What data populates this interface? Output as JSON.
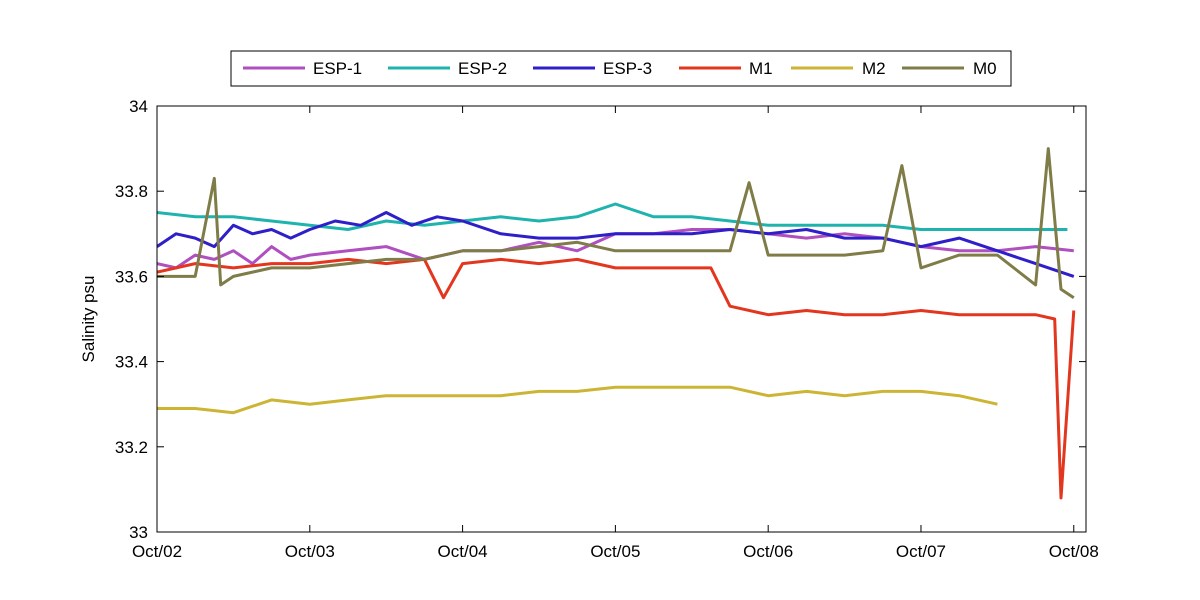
{
  "chart_data": {
    "type": "line",
    "title": "",
    "xlabel": "",
    "ylabel": "Salinity psu",
    "xlim": [
      "Oct/02",
      "Oct/08"
    ],
    "ylim": [
      33,
      34
    ],
    "x_ticks": [
      "Oct/02",
      "Oct/03",
      "Oct/04",
      "Oct/05",
      "Oct/06",
      "Oct/07",
      "Oct/08"
    ],
    "y_ticks": [
      "33",
      "33.2",
      "33.4",
      "33.6",
      "33.8",
      "34"
    ],
    "grid": false,
    "legend_position": "top-center",
    "series": [
      {
        "name": "ESP-1",
        "color": "#B04FBF",
        "x": [
          "Oct/02 00:00",
          "Oct/02 03:00",
          "Oct/02 06:00",
          "Oct/02 09:00",
          "Oct/02 12:00",
          "Oct/02 15:00",
          "Oct/02 18:00",
          "Oct/02 21:00",
          "Oct/03 00:00",
          "Oct/03 06:00",
          "Oct/03 12:00",
          "Oct/03 18:00",
          "Oct/04 00:00",
          "Oct/04 06:00",
          "Oct/04 12:00",
          "Oct/04 18:00",
          "Oct/05 00:00",
          "Oct/05 06:00",
          "Oct/05 12:00",
          "Oct/05 18:00",
          "Oct/06 00:00",
          "Oct/06 06:00",
          "Oct/06 12:00",
          "Oct/06 18:00",
          "Oct/07 00:00",
          "Oct/07 06:00",
          "Oct/07 12:00",
          "Oct/07 18:00",
          "Oct/08 00:00"
        ],
        "y": [
          33.63,
          33.62,
          33.65,
          33.64,
          33.66,
          33.63,
          33.67,
          33.64,
          33.65,
          33.66,
          33.67,
          33.64,
          33.66,
          33.66,
          33.68,
          33.66,
          33.7,
          33.7,
          33.71,
          33.71,
          33.7,
          33.69,
          33.7,
          33.69,
          33.67,
          33.66,
          33.66,
          33.67,
          33.66
        ]
      },
      {
        "name": "ESP-2",
        "color": "#1FB3AE",
        "x": [
          "Oct/02 00:00",
          "Oct/02 06:00",
          "Oct/02 12:00",
          "Oct/02 18:00",
          "Oct/03 00:00",
          "Oct/03 06:00",
          "Oct/03 12:00",
          "Oct/03 18:00",
          "Oct/04 00:00",
          "Oct/04 06:00",
          "Oct/04 12:00",
          "Oct/04 18:00",
          "Oct/05 00:00",
          "Oct/05 06:00",
          "Oct/05 12:00",
          "Oct/05 18:00",
          "Oct/06 00:00",
          "Oct/06 06:00",
          "Oct/06 12:00",
          "Oct/06 18:00",
          "Oct/07 00:00",
          "Oct/07 06:00",
          "Oct/07 12:00",
          "Oct/07 18:00",
          "Oct/07 23:00"
        ],
        "y": [
          33.75,
          33.74,
          33.74,
          33.73,
          33.72,
          33.71,
          33.73,
          33.72,
          33.73,
          33.74,
          33.73,
          33.74,
          33.77,
          33.74,
          33.74,
          33.73,
          33.72,
          33.72,
          33.72,
          33.72,
          33.71,
          33.71,
          33.71,
          33.71,
          33.71
        ]
      },
      {
        "name": "ESP-3",
        "color": "#2E1FC8",
        "x": [
          "Oct/02 00:00",
          "Oct/02 03:00",
          "Oct/02 06:00",
          "Oct/02 09:00",
          "Oct/02 12:00",
          "Oct/02 15:00",
          "Oct/02 18:00",
          "Oct/02 21:00",
          "Oct/03 00:00",
          "Oct/03 04:00",
          "Oct/03 08:00",
          "Oct/03 12:00",
          "Oct/03 16:00",
          "Oct/03 20:00",
          "Oct/04 00:00",
          "Oct/04 06:00",
          "Oct/04 12:00",
          "Oct/04 18:00",
          "Oct/05 00:00",
          "Oct/05 06:00",
          "Oct/05 12:00",
          "Oct/05 18:00",
          "Oct/06 00:00",
          "Oct/06 06:00",
          "Oct/06 12:00",
          "Oct/06 18:00",
          "Oct/07 00:00",
          "Oct/07 06:00",
          "Oct/07 12:00",
          "Oct/07 18:00",
          "Oct/08 00:00"
        ],
        "y": [
          33.67,
          33.7,
          33.69,
          33.67,
          33.72,
          33.7,
          33.71,
          33.69,
          33.71,
          33.73,
          33.72,
          33.75,
          33.72,
          33.74,
          33.73,
          33.7,
          33.69,
          33.69,
          33.7,
          33.7,
          33.7,
          33.71,
          33.7,
          33.71,
          33.69,
          33.69,
          33.67,
          33.69,
          33.66,
          33.63,
          33.6
        ]
      },
      {
        "name": "M1",
        "color": "#E2361F",
        "x": [
          "Oct/02 00:00",
          "Oct/02 06:00",
          "Oct/02 12:00",
          "Oct/02 18:00",
          "Oct/03 00:00",
          "Oct/03 06:00",
          "Oct/03 12:00",
          "Oct/03 18:00",
          "Oct/03 21:00",
          "Oct/04 00:00",
          "Oct/04 06:00",
          "Oct/04 12:00",
          "Oct/04 18:00",
          "Oct/05 00:00",
          "Oct/05 06:00",
          "Oct/05 12:00",
          "Oct/05 15:00",
          "Oct/05 18:00",
          "Oct/06 00:00",
          "Oct/06 06:00",
          "Oct/06 12:00",
          "Oct/06 18:00",
          "Oct/07 00:00",
          "Oct/07 06:00",
          "Oct/07 12:00",
          "Oct/07 18:00",
          "Oct/07 21:00",
          "Oct/07 22:00",
          "Oct/08 00:00"
        ],
        "y": [
          33.61,
          33.63,
          33.62,
          33.63,
          33.63,
          33.64,
          33.63,
          33.64,
          33.55,
          33.63,
          33.64,
          33.63,
          33.64,
          33.62,
          33.62,
          33.62,
          33.62,
          33.53,
          33.51,
          33.52,
          33.51,
          33.51,
          33.52,
          33.51,
          33.51,
          33.51,
          33.5,
          33.08,
          33.52
        ]
      },
      {
        "name": "M2",
        "color": "#CCB535",
        "x": [
          "Oct/02 00:00",
          "Oct/02 06:00",
          "Oct/02 12:00",
          "Oct/02 18:00",
          "Oct/03 00:00",
          "Oct/03 06:00",
          "Oct/03 12:00",
          "Oct/03 18:00",
          "Oct/04 00:00",
          "Oct/04 06:00",
          "Oct/04 12:00",
          "Oct/04 18:00",
          "Oct/05 00:00",
          "Oct/05 06:00",
          "Oct/05 12:00",
          "Oct/05 18:00",
          "Oct/06 00:00",
          "Oct/06 06:00",
          "Oct/06 12:00",
          "Oct/06 18:00",
          "Oct/07 00:00",
          "Oct/07 06:00",
          "Oct/07 12:00"
        ],
        "y": [
          33.29,
          33.29,
          33.28,
          33.31,
          33.3,
          33.31,
          33.32,
          33.32,
          33.32,
          33.32,
          33.33,
          33.33,
          33.34,
          33.34,
          33.34,
          33.34,
          33.32,
          33.33,
          33.32,
          33.33,
          33.33,
          33.32,
          33.3
        ]
      },
      {
        "name": "M0",
        "color": "#7F7C48",
        "x": [
          "Oct/02 00:00",
          "Oct/02 06:00",
          "Oct/02 09:00",
          "Oct/02 10:00",
          "Oct/02 12:00",
          "Oct/02 18:00",
          "Oct/03 00:00",
          "Oct/03 06:00",
          "Oct/03 12:00",
          "Oct/03 18:00",
          "Oct/04 00:00",
          "Oct/04 06:00",
          "Oct/04 12:00",
          "Oct/04 18:00",
          "Oct/05 00:00",
          "Oct/05 06:00",
          "Oct/05 12:00",
          "Oct/05 18:00",
          "Oct/05 21:00",
          "Oct/06 00:00",
          "Oct/06 06:00",
          "Oct/06 12:00",
          "Oct/06 18:00",
          "Oct/06 21:00",
          "Oct/07 00:00",
          "Oct/07 06:00",
          "Oct/07 12:00",
          "Oct/07 18:00",
          "Oct/07 20:00",
          "Oct/07 22:00",
          "Oct/08 00:00"
        ],
        "y": [
          33.6,
          33.6,
          33.83,
          33.58,
          33.6,
          33.62,
          33.62,
          33.63,
          33.64,
          33.64,
          33.66,
          33.66,
          33.67,
          33.68,
          33.66,
          33.66,
          33.66,
          33.66,
          33.82,
          33.65,
          33.65,
          33.65,
          33.66,
          33.86,
          33.62,
          33.65,
          33.65,
          33.58,
          33.9,
          33.57,
          33.55
        ]
      }
    ]
  }
}
